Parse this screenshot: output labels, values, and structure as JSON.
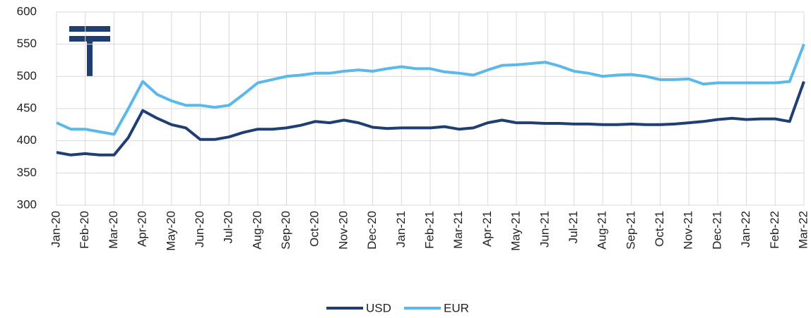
{
  "chart_data": {
    "type": "line",
    "categories": [
      "Jan-20",
      null,
      "Feb-20",
      null,
      "Mar-20",
      null,
      "Apr-20",
      null,
      "May-20",
      null,
      "Jun-20",
      null,
      "Jul-20",
      null,
      "Aug-20",
      null,
      "Sep-20",
      null,
      "Oct-20",
      null,
      "Nov-20",
      null,
      "Dec-20",
      null,
      "Jan-21",
      null,
      "Feb-21",
      null,
      "Mar-21",
      null,
      "Apr-21",
      null,
      "May-21",
      null,
      "Jun-21",
      null,
      "Jul-21",
      null,
      "Aug-21",
      null,
      "Sep-21",
      null,
      "Oct-21",
      null,
      "Nov-21",
      null,
      "Dec-21",
      null,
      "Jan-22",
      null,
      "Feb-22",
      null,
      "Mar-22"
    ],
    "series": [
      {
        "name": "USD",
        "color": "#1f3f73",
        "values": [
          382,
          378,
          380,
          378,
          378,
          405,
          447,
          435,
          425,
          420,
          402,
          402,
          406,
          413,
          418,
          418,
          420,
          424,
          430,
          428,
          432,
          428,
          421,
          419,
          420,
          420,
          420,
          422,
          418,
          420,
          428,
          432,
          428,
          428,
          427,
          427,
          426,
          426,
          425,
          425,
          426,
          425,
          425,
          426,
          428,
          430,
          433,
          435,
          433,
          434,
          434,
          430,
          492
        ]
      },
      {
        "name": "EUR",
        "color": "#5bb8e8",
        "values": [
          428,
          418,
          418,
          414,
          410,
          450,
          492,
          472,
          462,
          455,
          455,
          452,
          455,
          472,
          490,
          495,
          500,
          502,
          505,
          505,
          508,
          510,
          508,
          512,
          515,
          512,
          512,
          507,
          505,
          502,
          510,
          517,
          518,
          520,
          522,
          516,
          508,
          505,
          500,
          502,
          503,
          500,
          495,
          495,
          496,
          488,
          490,
          490,
          490,
          490,
          490,
          492,
          550
        ]
      }
    ],
    "ylim": [
      300,
      600
    ],
    "yticks": [
      300,
      350,
      400,
      450,
      500,
      550,
      600
    ],
    "grid": true,
    "legend": "bottom"
  }
}
